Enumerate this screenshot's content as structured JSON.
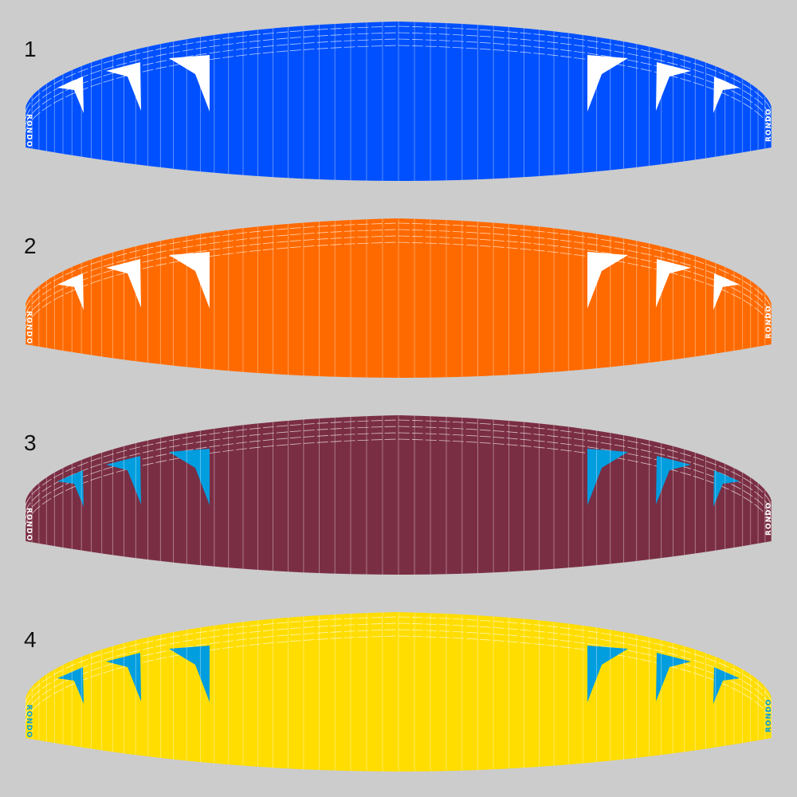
{
  "brand": "RONDO",
  "options": [
    {
      "number": "1",
      "canopy_color": "#0050ff",
      "accent_color": "#ffffff",
      "logo_color": "#ffffff"
    },
    {
      "number": "2",
      "canopy_color": "#ff6a00",
      "accent_color": "#ffffff",
      "logo_color": "#ffffff"
    },
    {
      "number": "3",
      "canopy_color": "#7a2e44",
      "accent_color": "#009ddf",
      "logo_color": "#ffffff"
    },
    {
      "number": "4",
      "canopy_color": "#ffdd00",
      "accent_color": "#009ddf",
      "logo_color": "#009ddf"
    }
  ],
  "background_color": "#cccccc"
}
